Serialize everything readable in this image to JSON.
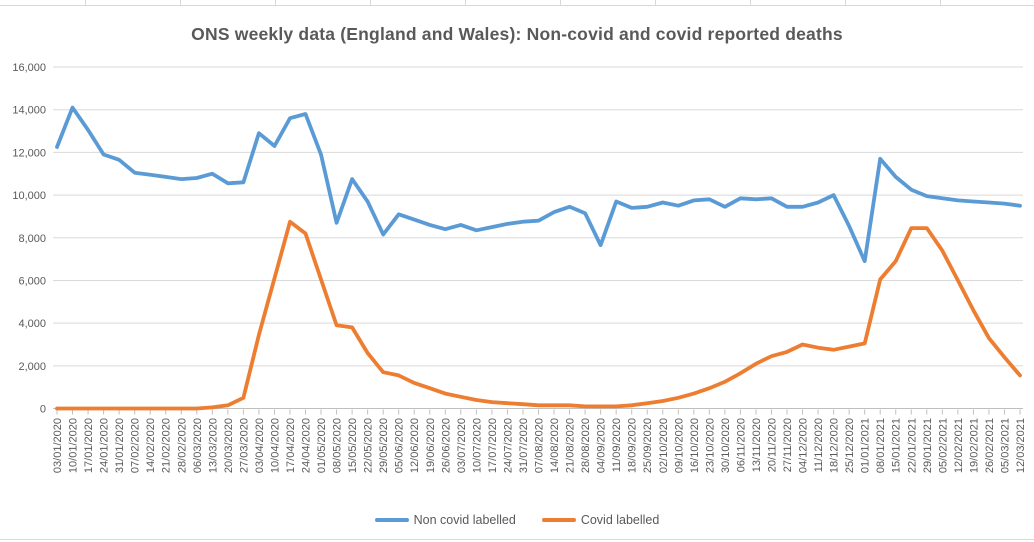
{
  "title": "ONS weekly data (England and Wales): Non-covid and covid reported deaths",
  "chart_data": {
    "type": "line",
    "title": "ONS weekly data (England and Wales): Non-covid and covid reported deaths",
    "xlabel": "",
    "ylabel": "",
    "ylim": [
      0,
      16000
    ],
    "y_tick_step": 2000,
    "grid": true,
    "legend_position": "bottom",
    "y_ticks": [
      "0",
      "2,000",
      "4,000",
      "6,000",
      "8,000",
      "10,000",
      "12,000",
      "14,000",
      "16,000"
    ],
    "x_tick_labels": [
      "03/01/2020",
      "10/01/2020",
      "17/01/2020",
      "24/01/2020",
      "31/01/2020",
      "07/02/2020",
      "14/02/2020",
      "21/02/2020",
      "28/02/2020",
      "06/03/2020",
      "13/03/2020",
      "20/03/2020",
      "27/03/2020",
      "03/04/2020",
      "10/04/2020",
      "17/04/2020",
      "24/04/2020",
      "01/05/2020",
      "08/05/2020",
      "15/05/2020",
      "22/05/2020",
      "29/05/2020",
      "05/06/2020",
      "12/06/2020",
      "19/06/2020",
      "26/06/2020",
      "03/07/2020",
      "10/07/2020",
      "17/07/2020",
      "24/07/2020",
      "31/07/2020",
      "07/08/2020",
      "14/08/2020",
      "21/08/2020",
      "28/08/2020",
      "04/09/2020",
      "11/09/2020",
      "18/09/2020",
      "25/09/2020",
      "02/10/2020",
      "09/10/2020",
      "16/10/2020",
      "23/10/2020",
      "30/10/2020",
      "06/11/2020",
      "13/11/2020",
      "20/11/2020",
      "27/11/2020",
      "04/12/2020",
      "11/12/2020",
      "18/12/2020",
      "25/12/2020",
      "01/01/2021",
      "08/01/2021",
      "15/01/2021",
      "22/01/2021",
      "29/01/2021",
      "05/02/2021",
      "12/02/2021",
      "19/02/2021",
      "26/02/2021",
      "05/03/2021",
      "12/03/2021"
    ],
    "series": [
      {
        "name": "Non covid labelled",
        "color": "#5B9BD5",
        "values": [
          12250,
          14100,
          13050,
          11900,
          11650,
          11050,
          10950,
          10850,
          10750,
          10800,
          11000,
          10550,
          10600,
          12900,
          12300,
          13600,
          13800,
          11900,
          8700,
          10750,
          9700,
          8150,
          9100,
          8850,
          8600,
          8400,
          8600,
          8350,
          8500,
          8650,
          8750,
          8800,
          9200,
          9450,
          9150,
          7650,
          9700,
          9400,
          9450,
          9650,
          9500,
          9750,
          9800,
          9450,
          9850,
          9800,
          9850,
          9450,
          9450,
          9650,
          10000,
          8550,
          6900,
          11700,
          10850,
          10250,
          9950,
          9850,
          9750,
          9700,
          9650,
          9600,
          9500
        ]
      },
      {
        "name": "Covid labelled",
        "color": "#ED7D31",
        "values": [
          0,
          0,
          0,
          0,
          0,
          0,
          0,
          0,
          0,
          0,
          50,
          150,
          500,
          3450,
          6100,
          8750,
          8200,
          6050,
          3900,
          3800,
          2600,
          1700,
          1550,
          1200,
          950,
          700,
          550,
          400,
          300,
          250,
          200,
          150,
          150,
          150,
          100,
          100,
          100,
          150,
          250,
          350,
          500,
          700,
          950,
          1250,
          1650,
          2100,
          2450,
          2650,
          3000,
          2850,
          2750,
          2900,
          3050,
          6050,
          6900,
          8450,
          8450,
          7400,
          6000,
          4600,
          3300,
          2400,
          1550
        ]
      }
    ]
  },
  "legend": {
    "items": [
      {
        "label": "Non covid labelled",
        "color": "#5B9BD5"
      },
      {
        "label": "Covid labelled",
        "color": "#ED7D31"
      }
    ]
  },
  "style_colors": {
    "gridline": "#D9D9D9",
    "axis_line": "#BFBFBF",
    "tick_text": "#595959",
    "title_text": "#595959"
  }
}
